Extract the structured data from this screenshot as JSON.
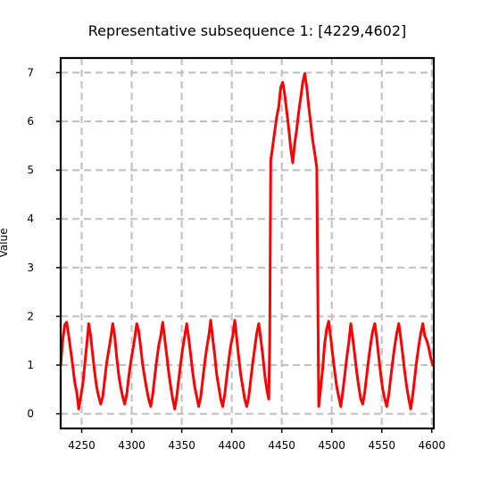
{
  "chart_data": {
    "type": "line",
    "title": "Representative subsequence 1: [4229,4602]",
    "xlabel": "",
    "ylabel": "Value",
    "xlim": [
      4229,
      4602
    ],
    "ylim": [
      -0.3,
      7.3
    ],
    "x_ticks": [
      4250,
      4300,
      4350,
      4400,
      4450,
      4500,
      4550,
      4600
    ],
    "y_ticks": [
      0,
      1,
      2,
      3,
      4,
      5,
      6,
      7
    ],
    "grid": true,
    "legend": "none",
    "series": [
      {
        "color": "#ff0000",
        "points": [
          [
            4229,
            1.0
          ],
          [
            4231,
            1.5
          ],
          [
            4233,
            1.82
          ],
          [
            4235,
            1.88
          ],
          [
            4237,
            1.6
          ],
          [
            4239,
            1.3
          ],
          [
            4241,
            1.0
          ],
          [
            4243,
            0.65
          ],
          [
            4245,
            0.45
          ],
          [
            4247,
            0.1
          ],
          [
            4249,
            0.35
          ],
          [
            4251,
            0.6
          ],
          [
            4253,
            1.0
          ],
          [
            4255,
            1.4
          ],
          [
            4257,
            1.85
          ],
          [
            4259,
            1.6
          ],
          [
            4261,
            1.2
          ],
          [
            4263,
            0.85
          ],
          [
            4265,
            0.55
          ],
          [
            4267,
            0.35
          ],
          [
            4269,
            0.2
          ],
          [
            4271,
            0.35
          ],
          [
            4273,
            0.7
          ],
          [
            4275,
            1.05
          ],
          [
            4277,
            1.3
          ],
          [
            4279,
            1.55
          ],
          [
            4281,
            1.85
          ],
          [
            4283,
            1.6
          ],
          [
            4285,
            1.15
          ],
          [
            4287,
            0.8
          ],
          [
            4289,
            0.55
          ],
          [
            4291,
            0.35
          ],
          [
            4293,
            0.2
          ],
          [
            4295,
            0.4
          ],
          [
            4297,
            0.75
          ],
          [
            4299,
            1.05
          ],
          [
            4301,
            1.3
          ],
          [
            4303,
            1.55
          ],
          [
            4305,
            1.85
          ],
          [
            4307,
            1.7
          ],
          [
            4309,
            1.35
          ],
          [
            4311,
            1.0
          ],
          [
            4313,
            0.75
          ],
          [
            4315,
            0.5
          ],
          [
            4317,
            0.3
          ],
          [
            4319,
            0.15
          ],
          [
            4321,
            0.4
          ],
          [
            4323,
            0.75
          ],
          [
            4325,
            1.1
          ],
          [
            4327,
            1.4
          ],
          [
            4329,
            1.6
          ],
          [
            4331,
            1.88
          ],
          [
            4333,
            1.55
          ],
          [
            4335,
            1.2
          ],
          [
            4337,
            0.85
          ],
          [
            4339,
            0.55
          ],
          [
            4341,
            0.3
          ],
          [
            4343,
            0.1
          ],
          [
            4345,
            0.35
          ],
          [
            4347,
            0.7
          ],
          [
            4349,
            1.05
          ],
          [
            4351,
            1.35
          ],
          [
            4353,
            1.6
          ],
          [
            4355,
            1.85
          ],
          [
            4357,
            1.55
          ],
          [
            4359,
            1.2
          ],
          [
            4361,
            0.85
          ],
          [
            4363,
            0.55
          ],
          [
            4365,
            0.35
          ],
          [
            4367,
            0.15
          ],
          [
            4369,
            0.35
          ],
          [
            4371,
            0.7
          ],
          [
            4373,
            1.05
          ],
          [
            4375,
            1.35
          ],
          [
            4377,
            1.6
          ],
          [
            4379,
            1.92
          ],
          [
            4381,
            1.55
          ],
          [
            4383,
            1.2
          ],
          [
            4385,
            0.8
          ],
          [
            4387,
            0.55
          ],
          [
            4389,
            0.3
          ],
          [
            4391,
            0.15
          ],
          [
            4393,
            0.4
          ],
          [
            4395,
            0.75
          ],
          [
            4397,
            1.1
          ],
          [
            4399,
            1.4
          ],
          [
            4401,
            1.6
          ],
          [
            4403,
            1.92
          ],
          [
            4405,
            1.55
          ],
          [
            4407,
            1.15
          ],
          [
            4409,
            0.8
          ],
          [
            4411,
            0.55
          ],
          [
            4413,
            0.3
          ],
          [
            4415,
            0.15
          ],
          [
            4417,
            0.35
          ],
          [
            4419,
            0.7
          ],
          [
            4421,
            1.05
          ],
          [
            4423,
            1.35
          ],
          [
            4425,
            1.65
          ],
          [
            4427,
            1.85
          ],
          [
            4429,
            1.55
          ],
          [
            4431,
            1.2
          ],
          [
            4433,
            0.8
          ],
          [
            4435,
            0.5
          ],
          [
            4437,
            0.3
          ],
          [
            4438,
            1.5
          ],
          [
            4439,
            5.2
          ],
          [
            4441,
            5.5
          ],
          [
            4443,
            5.8
          ],
          [
            4445,
            6.1
          ],
          [
            4447,
            6.3
          ],
          [
            4449,
            6.7
          ],
          [
            4451,
            6.8
          ],
          [
            4453,
            6.55
          ],
          [
            4455,
            6.2
          ],
          [
            4457,
            5.85
          ],
          [
            4459,
            5.45
          ],
          [
            4461,
            5.15
          ],
          [
            4463,
            5.55
          ],
          [
            4465,
            5.85
          ],
          [
            4467,
            6.2
          ],
          [
            4469,
            6.5
          ],
          [
            4471,
            6.8
          ],
          [
            4473,
            6.98
          ],
          [
            4475,
            6.7
          ],
          [
            4477,
            6.3
          ],
          [
            4479,
            5.95
          ],
          [
            4481,
            5.6
          ],
          [
            4483,
            5.35
          ],
          [
            4485,
            5.05
          ],
          [
            4487,
            0.15
          ],
          [
            4489,
            0.55
          ],
          [
            4491,
            0.95
          ],
          [
            4493,
            1.45
          ],
          [
            4495,
            1.75
          ],
          [
            4497,
            1.9
          ],
          [
            4499,
            1.55
          ],
          [
            4501,
            1.2
          ],
          [
            4503,
            0.85
          ],
          [
            4505,
            0.55
          ],
          [
            4507,
            0.35
          ],
          [
            4509,
            0.15
          ],
          [
            4511,
            0.45
          ],
          [
            4513,
            0.8
          ],
          [
            4515,
            1.15
          ],
          [
            4517,
            1.45
          ],
          [
            4519,
            1.85
          ],
          [
            4521,
            1.55
          ],
          [
            4523,
            1.2
          ],
          [
            4525,
            0.85
          ],
          [
            4527,
            0.55
          ],
          [
            4529,
            0.3
          ],
          [
            4531,
            0.2
          ],
          [
            4533,
            0.45
          ],
          [
            4535,
            0.8
          ],
          [
            4537,
            1.15
          ],
          [
            4539,
            1.45
          ],
          [
            4541,
            1.7
          ],
          [
            4543,
            1.85
          ],
          [
            4545,
            1.55
          ],
          [
            4547,
            1.15
          ],
          [
            4549,
            0.8
          ],
          [
            4551,
            0.5
          ],
          [
            4553,
            0.3
          ],
          [
            4555,
            0.15
          ],
          [
            4557,
            0.4
          ],
          [
            4559,
            0.75
          ],
          [
            4561,
            1.1
          ],
          [
            4563,
            1.4
          ],
          [
            4565,
            1.65
          ],
          [
            4567,
            1.85
          ],
          [
            4569,
            1.55
          ],
          [
            4571,
            1.2
          ],
          [
            4573,
            0.85
          ],
          [
            4575,
            0.55
          ],
          [
            4577,
            0.3
          ],
          [
            4579,
            0.1
          ],
          [
            4581,
            0.4
          ],
          [
            4583,
            0.75
          ],
          [
            4585,
            1.1
          ],
          [
            4587,
            1.4
          ],
          [
            4589,
            1.65
          ],
          [
            4591,
            1.85
          ],
          [
            4593,
            1.6
          ],
          [
            4595,
            1.5
          ],
          [
            4597,
            1.35
          ],
          [
            4599,
            1.15
          ],
          [
            4601,
            1.0
          ]
        ]
      }
    ]
  }
}
